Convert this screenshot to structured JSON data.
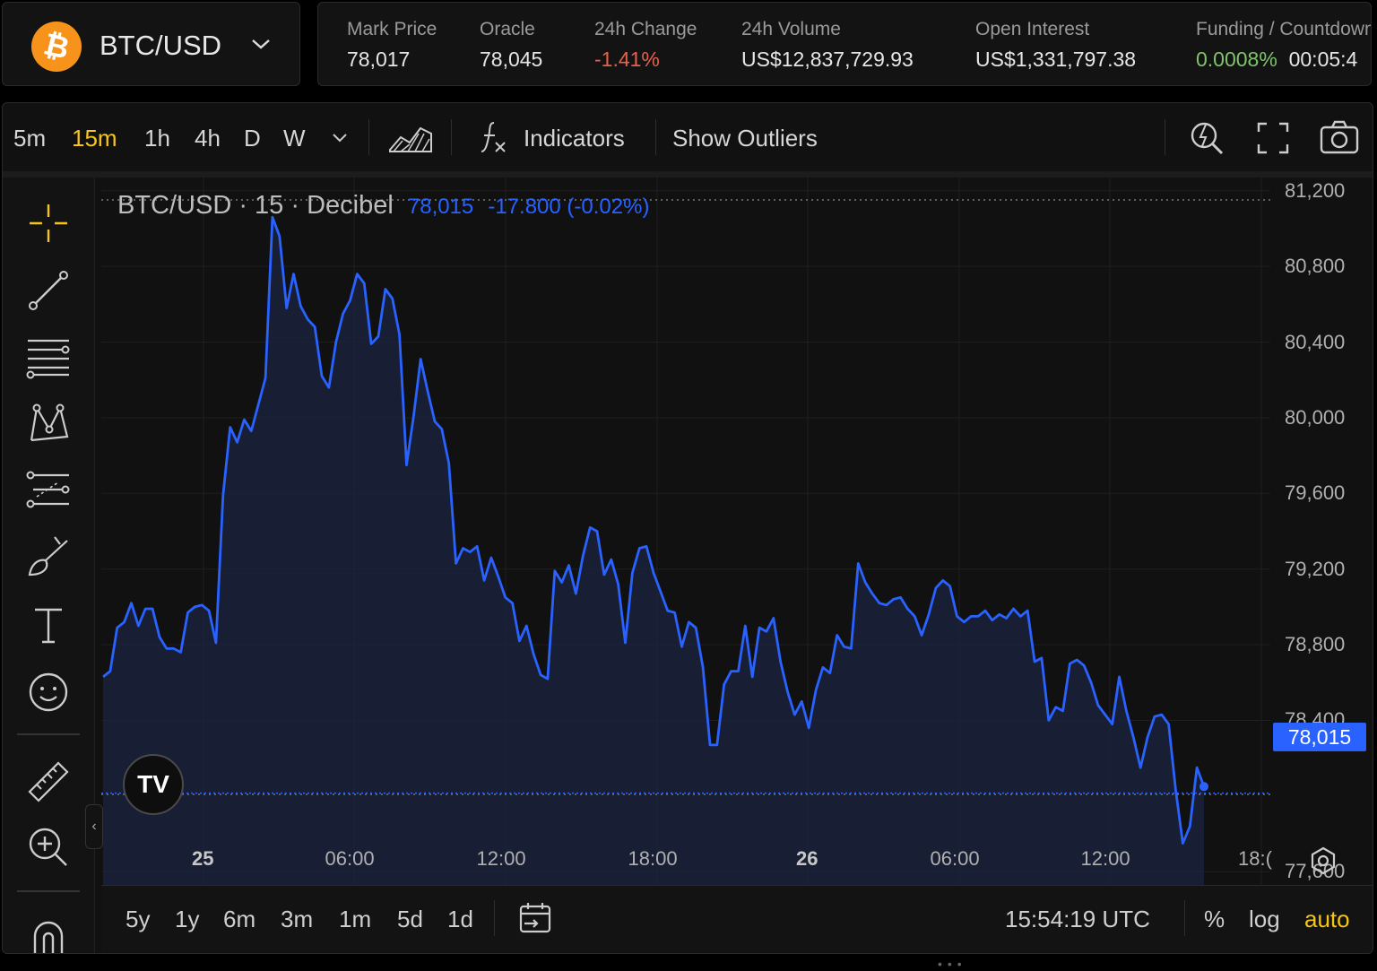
{
  "pair": {
    "symbol_glyph": "₿",
    "name": "BTC/USD"
  },
  "stats": [
    {
      "label": "Mark Price",
      "value": "78,017",
      "color": "#e6e6e6"
    },
    {
      "label": "Oracle",
      "value": "78,045",
      "color": "#e6e6e6"
    },
    {
      "label": "24h Change",
      "value": "-1.41%",
      "color": "#e8604c"
    },
    {
      "label": "24h Volume",
      "value": "US$12,837,729.93",
      "color": "#e6e6e6"
    },
    {
      "label": "Open Interest",
      "value": "US$1,331,797.38",
      "color": "#e6e6e6"
    }
  ],
  "funding": {
    "label": "Funding / Countdown",
    "rate": "0.0008%",
    "rate_color": "#7fc46c",
    "countdown": "00:05:4"
  },
  "toolbar": {
    "timeframes": [
      "5m",
      "15m",
      "1h",
      "4h",
      "D",
      "W"
    ],
    "active_timeframe": "15m",
    "indicators_label": "Indicators",
    "outliers_label": "Show Outliers"
  },
  "legend": {
    "title": "BTC/USD · 15 · Decibel",
    "price": "78,015",
    "change": "-17.800 (-0.02%)"
  },
  "price_axis": [
    "81,200",
    "80,800",
    "80,400",
    "80,000",
    "79,600",
    "79,200",
    "78,800",
    "78,400",
    "77,600"
  ],
  "time_axis": [
    {
      "t": "25",
      "bold": true
    },
    {
      "t": "06:00",
      "bold": false
    },
    {
      "t": "12:00",
      "bold": false
    },
    {
      "t": "18:00",
      "bold": false
    },
    {
      "t": "26",
      "bold": true
    },
    {
      "t": "06:00",
      "bold": false
    },
    {
      "t": "12:00",
      "bold": false
    },
    {
      "t": "18:(",
      "bold": false
    }
  ],
  "current_price_tag": "78,015",
  "ranges": [
    "5y",
    "1y",
    "6m",
    "3m",
    "1m",
    "5d",
    "1d"
  ],
  "footer": {
    "clock": "15:54:19 UTC",
    "percent": "%",
    "log": "log",
    "auto": "auto"
  },
  "tv_logo": "TV",
  "chart_data": {
    "type": "area",
    "title": "BTC/USD · 15 · Decibel",
    "series": [
      {
        "values": [
          78630,
          78660,
          78890,
          78920,
          79020,
          78900,
          78990,
          78990,
          78840,
          78780,
          78780,
          78760,
          78970,
          79000,
          79010,
          78980,
          78810,
          79590,
          79950,
          79870,
          79990,
          79930,
          80070,
          80210,
          81060,
          80960,
          80580,
          80760,
          80590,
          80520,
          80480,
          80220,
          80160,
          80400,
          80550,
          80620,
          80760,
          80710,
          80390,
          80430,
          80680,
          80630,
          80440,
          79750,
          80010,
          80310,
          80140,
          79980,
          79940,
          79760,
          79230,
          79310,
          79290,
          79320,
          79140,
          79260,
          79160,
          79050,
          79020,
          78820,
          78900,
          78750,
          78640,
          78620,
          79190,
          79130,
          79220,
          79070,
          79270,
          79420,
          79400,
          79170,
          79250,
          79120,
          78810,
          79180,
          79310,
          79320,
          79180,
          79080,
          78980,
          78970,
          78790,
          78920,
          78890,
          78680,
          78270,
          78270,
          78590,
          78660,
          78660,
          78900,
          78630,
          78890,
          78870,
          78940,
          78710,
          78550,
          78430,
          78500,
          78360,
          78560,
          78680,
          78650,
          78850,
          78790,
          78780,
          79230,
          79130,
          79070,
          79020,
          79010,
          79040,
          79050,
          78990,
          78950,
          78850,
          78960,
          79100,
          79140,
          79110,
          78950,
          78920,
          78950,
          78950,
          78980,
          78930,
          78960,
          78940,
          78990,
          78950,
          78980,
          78710,
          78730,
          78400,
          78470,
          78450,
          78700,
          78720,
          78690,
          78600,
          78480,
          78430,
          78380,
          78630,
          78450,
          78310,
          78150,
          78310,
          78420,
          78430,
          78380,
          78030,
          77750,
          77840,
          78150,
          78050
        ]
      }
    ],
    "ylim": [
      77530,
      81270
    ],
    "y_ticks": [
      81200,
      80800,
      80400,
      80000,
      79600,
      79200,
      78800,
      78400,
      77600
    ],
    "x_ticks": [
      "25",
      "06:00",
      "12:00",
      "18:00",
      "26",
      "06:00",
      "12:00",
      "18:("
    ],
    "line_color": "#2962ff",
    "grid": true,
    "last_value": 78015
  }
}
